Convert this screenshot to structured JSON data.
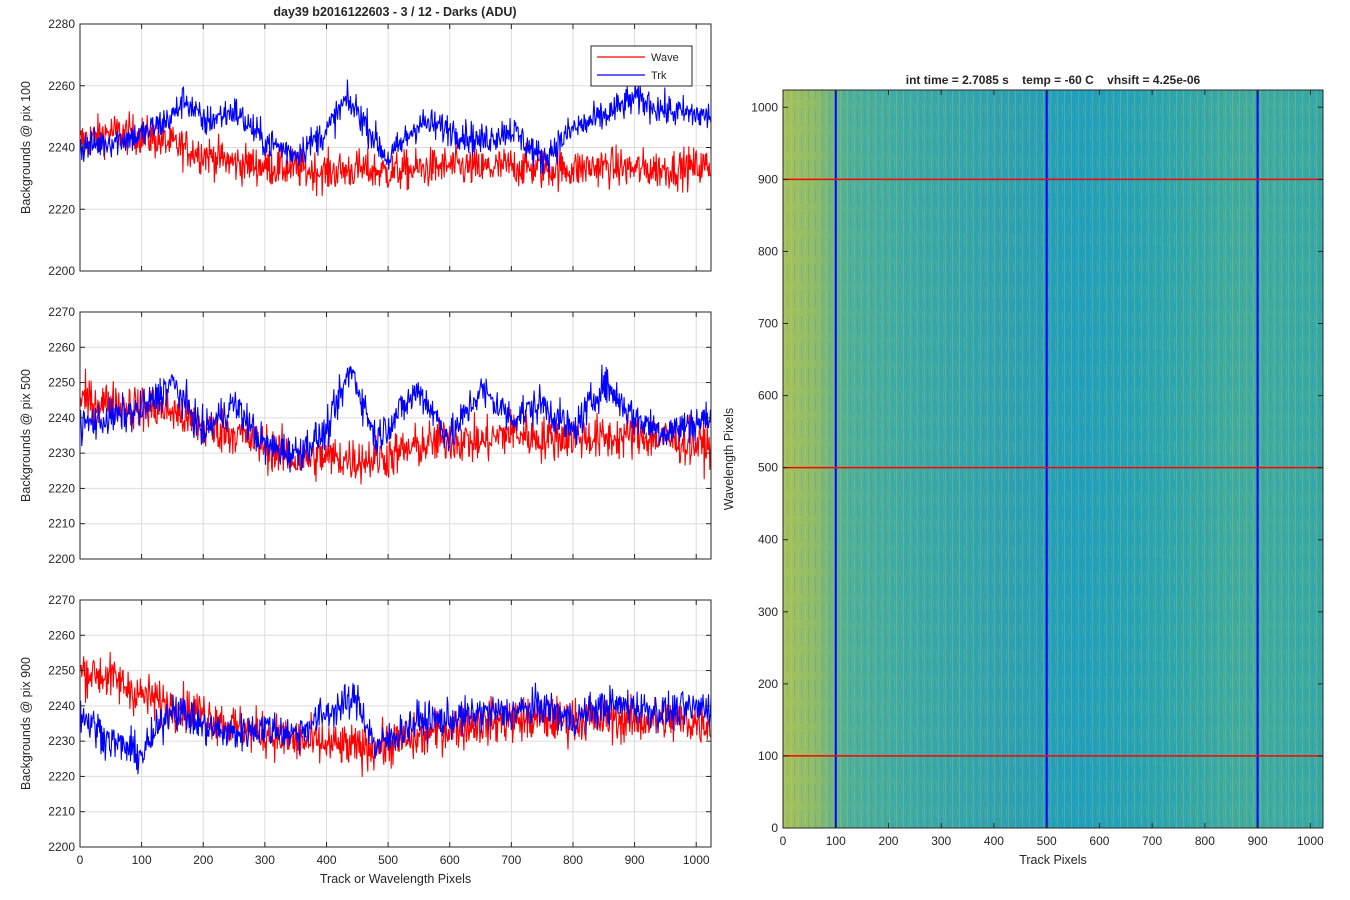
{
  "figure": {
    "title": "day39 b2016122603 - 3 / 12 - Darks (ADU)"
  },
  "legend": {
    "items": [
      {
        "label": "Wave",
        "color": "#ff0000"
      },
      {
        "label": "Trk",
        "color": "#0000ff"
      }
    ]
  },
  "chart_data": [
    {
      "type": "line",
      "ylabel": "Backgrounds @ pix 100",
      "xlabel": "",
      "xlim": [
        0,
        1024
      ],
      "ylim": [
        2200,
        2280
      ],
      "xticks": [
        0,
        100,
        200,
        300,
        400,
        500,
        600,
        700,
        800,
        900,
        1000
      ],
      "yticks": [
        2200,
        2220,
        2240,
        2260,
        2280
      ],
      "grid": true,
      "legend_position": "top-right",
      "series": [
        {
          "name": "Wave",
          "color": "#ff0000",
          "x": [
            0,
            50,
            100,
            150,
            200,
            250,
            300,
            350,
            400,
            450,
            500,
            550,
            600,
            650,
            700,
            750,
            800,
            850,
            900,
            950,
            1023
          ],
          "y": [
            2242,
            2245,
            2244,
            2241,
            2238,
            2235,
            2234,
            2233,
            2232,
            2233,
            2232,
            2233,
            2234,
            2233,
            2234,
            2233,
            2233,
            2234,
            2233,
            2233,
            2234
          ]
        },
        {
          "name": "Trk",
          "color": "#0000ff",
          "x": [
            0,
            50,
            100,
            150,
            170,
            200,
            250,
            300,
            350,
            400,
            430,
            450,
            500,
            550,
            600,
            650,
            700,
            750,
            800,
            850,
            900,
            950,
            1023
          ],
          "y": [
            2240,
            2242,
            2244,
            2250,
            2256,
            2248,
            2252,
            2242,
            2238,
            2245,
            2255,
            2252,
            2236,
            2248,
            2246,
            2242,
            2246,
            2236,
            2246,
            2250,
            2256,
            2252,
            2250
          ]
        }
      ]
    },
    {
      "type": "line",
      "ylabel": "Backgrounds @ pix 500",
      "xlabel": "",
      "xlim": [
        0,
        1024
      ],
      "ylim": [
        2200,
        2270
      ],
      "xticks": [
        0,
        100,
        200,
        300,
        400,
        500,
        600,
        700,
        800,
        900,
        1000
      ],
      "yticks": [
        2200,
        2210,
        2220,
        2230,
        2240,
        2250,
        2260,
        2270
      ],
      "grid": true,
      "series": [
        {
          "name": "Wave",
          "color": "#ff0000",
          "x": [
            0,
            50,
            100,
            150,
            200,
            250,
            300,
            350,
            400,
            450,
            500,
            550,
            600,
            650,
            700,
            750,
            800,
            850,
            900,
            950,
            1023
          ],
          "y": [
            2245,
            2244,
            2243,
            2242,
            2237,
            2236,
            2232,
            2228,
            2229,
            2228,
            2229,
            2232,
            2234,
            2233,
            2236,
            2234,
            2235,
            2234,
            2235,
            2234,
            2232
          ]
        },
        {
          "name": "Trk",
          "color": "#0000ff",
          "x": [
            0,
            50,
            100,
            150,
            200,
            250,
            300,
            350,
            400,
            440,
            480,
            550,
            600,
            650,
            700,
            750,
            800,
            850,
            900,
            950,
            1023
          ],
          "y": [
            2238,
            2240,
            2242,
            2250,
            2236,
            2244,
            2232,
            2230,
            2236,
            2254,
            2234,
            2248,
            2234,
            2248,
            2240,
            2244,
            2236,
            2250,
            2240,
            2236,
            2240
          ]
        }
      ]
    },
    {
      "type": "line",
      "ylabel": "Backgrounds @ pix 900",
      "xlabel": "Track or Wavelength Pixels",
      "xlim": [
        0,
        1024
      ],
      "ylim": [
        2200,
        2270
      ],
      "xticks": [
        0,
        100,
        200,
        300,
        400,
        500,
        600,
        700,
        800,
        900,
        1000
      ],
      "yticks": [
        2200,
        2210,
        2220,
        2230,
        2240,
        2250,
        2260,
        2270
      ],
      "grid": true,
      "series": [
        {
          "name": "Wave",
          "color": "#ff0000",
          "x": [
            0,
            50,
            100,
            150,
            200,
            250,
            300,
            350,
            400,
            450,
            500,
            550,
            600,
            650,
            700,
            750,
            800,
            850,
            900,
            950,
            1023
          ],
          "y": [
            2250,
            2248,
            2243,
            2240,
            2238,
            2234,
            2232,
            2230,
            2229,
            2228,
            2229,
            2231,
            2234,
            2235,
            2236,
            2236,
            2236,
            2236,
            2236,
            2236,
            2235
          ]
        },
        {
          "name": "Trk",
          "color": "#0000ff",
          "x": [
            0,
            50,
            100,
            150,
            200,
            250,
            300,
            350,
            400,
            450,
            480,
            550,
            600,
            650,
            700,
            750,
            800,
            850,
            900,
            950,
            1023
          ],
          "y": [
            2238,
            2230,
            2226,
            2240,
            2234,
            2232,
            2234,
            2232,
            2238,
            2242,
            2228,
            2236,
            2236,
            2238,
            2238,
            2240,
            2236,
            2240,
            2240,
            2238,
            2240
          ]
        }
      ]
    },
    {
      "type": "heatmap",
      "title": "int time = 2.7085 s    temp = -60 C    vhsift = 4.25e-06",
      "xlabel": "Track Pixels",
      "ylabel": "Wavelength Pixels",
      "xlim": [
        0,
        1024
      ],
      "ylim": [
        0,
        1024
      ],
      "xticks": [
        0,
        100,
        200,
        300,
        400,
        500,
        600,
        700,
        800,
        900,
        1000
      ],
      "yticks": [
        0,
        100,
        200,
        300,
        400,
        500,
        600,
        700,
        800,
        900,
        1000
      ],
      "grid": false,
      "colormap": "parula",
      "overlay_lines": {
        "vertical_x": [
          100,
          500,
          900
        ],
        "vertical_color": "#0000ff",
        "horizontal_y": [
          100,
          500,
          900
        ],
        "horizontal_color": "#ff0000"
      }
    }
  ]
}
